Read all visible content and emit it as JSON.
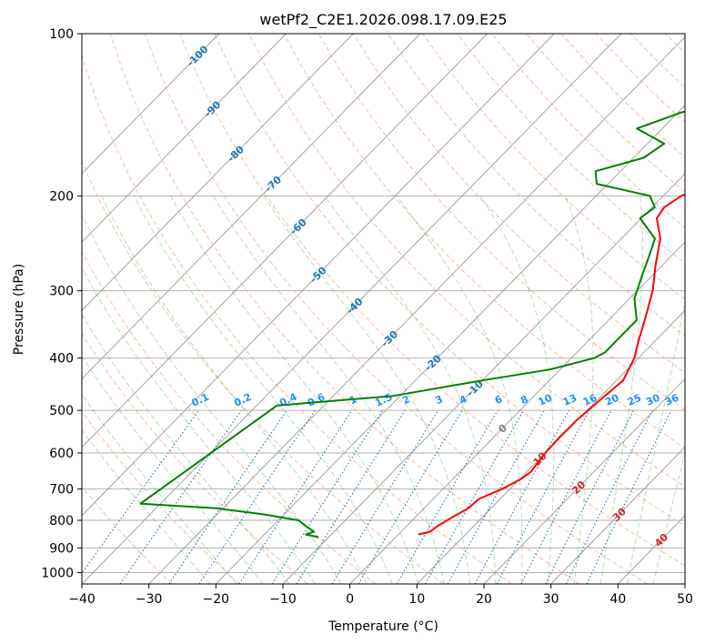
{
  "chart_data": {
    "type": "line",
    "subtype": "skew-T log-P diagram",
    "title": "wetPf2_C2E1.2026.098.17.09.E25",
    "xlabel": "Temperature (°C)",
    "ylabel": "Pressure (hPa)",
    "xlim": [
      -40,
      50
    ],
    "ylim": [
      1050,
      100
    ],
    "x_ticks": [
      -40,
      -30,
      -20,
      -10,
      0,
      10,
      20,
      30,
      40,
      50
    ],
    "y_ticks": [
      100,
      200,
      300,
      400,
      500,
      600,
      700,
      800,
      900,
      1000
    ],
    "grid": true,
    "series": [
      {
        "name": "Temperature",
        "color": "#ff0000",
        "points": [
          {
            "p": 850,
            "t": 3.0
          },
          {
            "p": 840,
            "t": 4.3
          },
          {
            "p": 820,
            "t": 4.6
          },
          {
            "p": 790,
            "t": 5.5
          },
          {
            "p": 760,
            "t": 6.6
          },
          {
            "p": 730,
            "t": 6.8
          },
          {
            "p": 700,
            "t": 8.8
          },
          {
            "p": 670,
            "t": 10.2
          },
          {
            "p": 650,
            "t": 10.6
          },
          {
            "p": 600,
            "t": 10.0
          },
          {
            "p": 560,
            "t": 9.8
          },
          {
            "p": 520,
            "t": 9.9
          },
          {
            "p": 480,
            "t": 10.4
          },
          {
            "p": 440,
            "t": 11.0
          },
          {
            "p": 400,
            "t": 9.4
          },
          {
            "p": 370,
            "t": 7.4
          },
          {
            "p": 340,
            "t": 5.4
          },
          {
            "p": 300,
            "t": 2.3
          },
          {
            "p": 270,
            "t": -0.9
          },
          {
            "p": 240,
            "t": -4.2
          },
          {
            "p": 220,
            "t": -7.7
          },
          {
            "p": 210,
            "t": -8.2
          },
          {
            "p": 200,
            "t": -7.3
          },
          {
            "p": 190,
            "t": -4.4
          },
          {
            "p": 180,
            "t": -2.7
          },
          {
            "p": 170,
            "t": -2.2
          },
          {
            "p": 160,
            "t": -0.5
          },
          {
            "p": 150,
            "t": 2.1
          },
          {
            "p": 140,
            "t": 4.3
          },
          {
            "p": 130,
            "t": 2.0
          },
          {
            "p": 120,
            "t": 0.3
          },
          {
            "p": 112,
            "t": 0.0
          },
          {
            "p": 106,
            "t": 0.4
          },
          {
            "p": 100,
            "t": 0.5
          }
        ]
      },
      {
        "name": "Dewpoint",
        "color": "#008000",
        "points": [
          {
            "p": 860,
            "t": -11.5
          },
          {
            "p": 850,
            "t": -13.8
          },
          {
            "p": 840,
            "t": -13.0
          },
          {
            "p": 820,
            "t": -15.0
          },
          {
            "p": 800,
            "t": -17.0
          },
          {
            "p": 780,
            "t": -23.0
          },
          {
            "p": 760,
            "t": -31.0
          },
          {
            "p": 745,
            "t": -43.0
          },
          {
            "p": 490,
            "t": -37.0
          },
          {
            "p": 470,
            "t": -21.0
          },
          {
            "p": 440,
            "t": -10.0
          },
          {
            "p": 420,
            "t": -1.5
          },
          {
            "p": 400,
            "t": 3.4
          },
          {
            "p": 390,
            "t": 4.2
          },
          {
            "p": 370,
            "t": 4.2
          },
          {
            "p": 340,
            "t": 4.2
          },
          {
            "p": 310,
            "t": 0.7
          },
          {
            "p": 280,
            "t": -1.6
          },
          {
            "p": 260,
            "t": -3.2
          },
          {
            "p": 240,
            "t": -5.0
          },
          {
            "p": 220,
            "t": -10.2
          },
          {
            "p": 210,
            "t": -9.6
          },
          {
            "p": 200,
            "t": -12.0
          },
          {
            "p": 190,
            "t": -21.7
          },
          {
            "p": 180,
            "t": -23.7
          },
          {
            "p": 170,
            "t": -18.5
          },
          {
            "p": 160,
            "t": -17.5
          },
          {
            "p": 150,
            "t": -23.8
          },
          {
            "p": 140,
            "t": -19.5
          },
          {
            "p": 130,
            "t": -11.2
          },
          {
            "p": 120,
            "t": -8.2
          },
          {
            "p": 110,
            "t": -4.3
          },
          {
            "p": 100,
            "t": -3.4
          }
        ]
      }
    ],
    "isotherms": {
      "color": "#808080",
      "values_start": -100,
      "values_end": 50,
      "step": 10
    },
    "dry_adiabats": {
      "color": "#ff7f50",
      "style": "dashed"
    },
    "moist_adiabats": {
      "color": "#2ca02c",
      "style": "dashed"
    },
    "mixing_ratio_lines": {
      "color": "#1e90ff",
      "style": "dotted",
      "labels": [
        "0.1",
        "0.2",
        "0.4",
        "0.6",
        "1",
        "1.5",
        "2",
        "3",
        "4",
        "6",
        "8",
        "10",
        "13",
        "16",
        "20",
        "25",
        "30",
        "36"
      ]
    },
    "isotherm_labels_blue": [
      "-100",
      "-90",
      "-80",
      "-70",
      "-60",
      "-50",
      "-40",
      "-30",
      "-20",
      "-10"
    ],
    "isotherm_labels_gray": [
      "0"
    ],
    "isotherm_labels_red": [
      "10",
      "20",
      "30",
      "40"
    ]
  }
}
